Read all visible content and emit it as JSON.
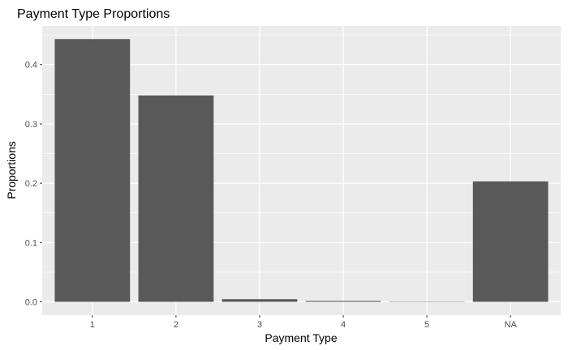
{
  "chart_data": {
    "type": "bar",
    "title": "Payment Type Proportions",
    "xlabel": "Payment Type",
    "ylabel": "Proportions",
    "categories": [
      "1",
      "2",
      "3",
      "4",
      "5",
      "NA"
    ],
    "values": [
      0.443,
      0.348,
      0.0045,
      0.0015,
      0.0002,
      0.203
    ],
    "ylim": [
      -0.0225,
      0.4652
    ],
    "yticks": [
      0.0,
      0.1,
      0.2,
      0.3,
      0.4
    ],
    "ytick_labels": [
      "0.0",
      "0.1",
      "0.2",
      "0.3",
      "0.4"
    ],
    "grid": true,
    "legend": "none",
    "colors": {
      "panel": "#ebebeb",
      "grid": "#ffffff",
      "bar": "#595959",
      "tick_text": "#4d4d4d",
      "tick_mark": "#333333"
    }
  }
}
